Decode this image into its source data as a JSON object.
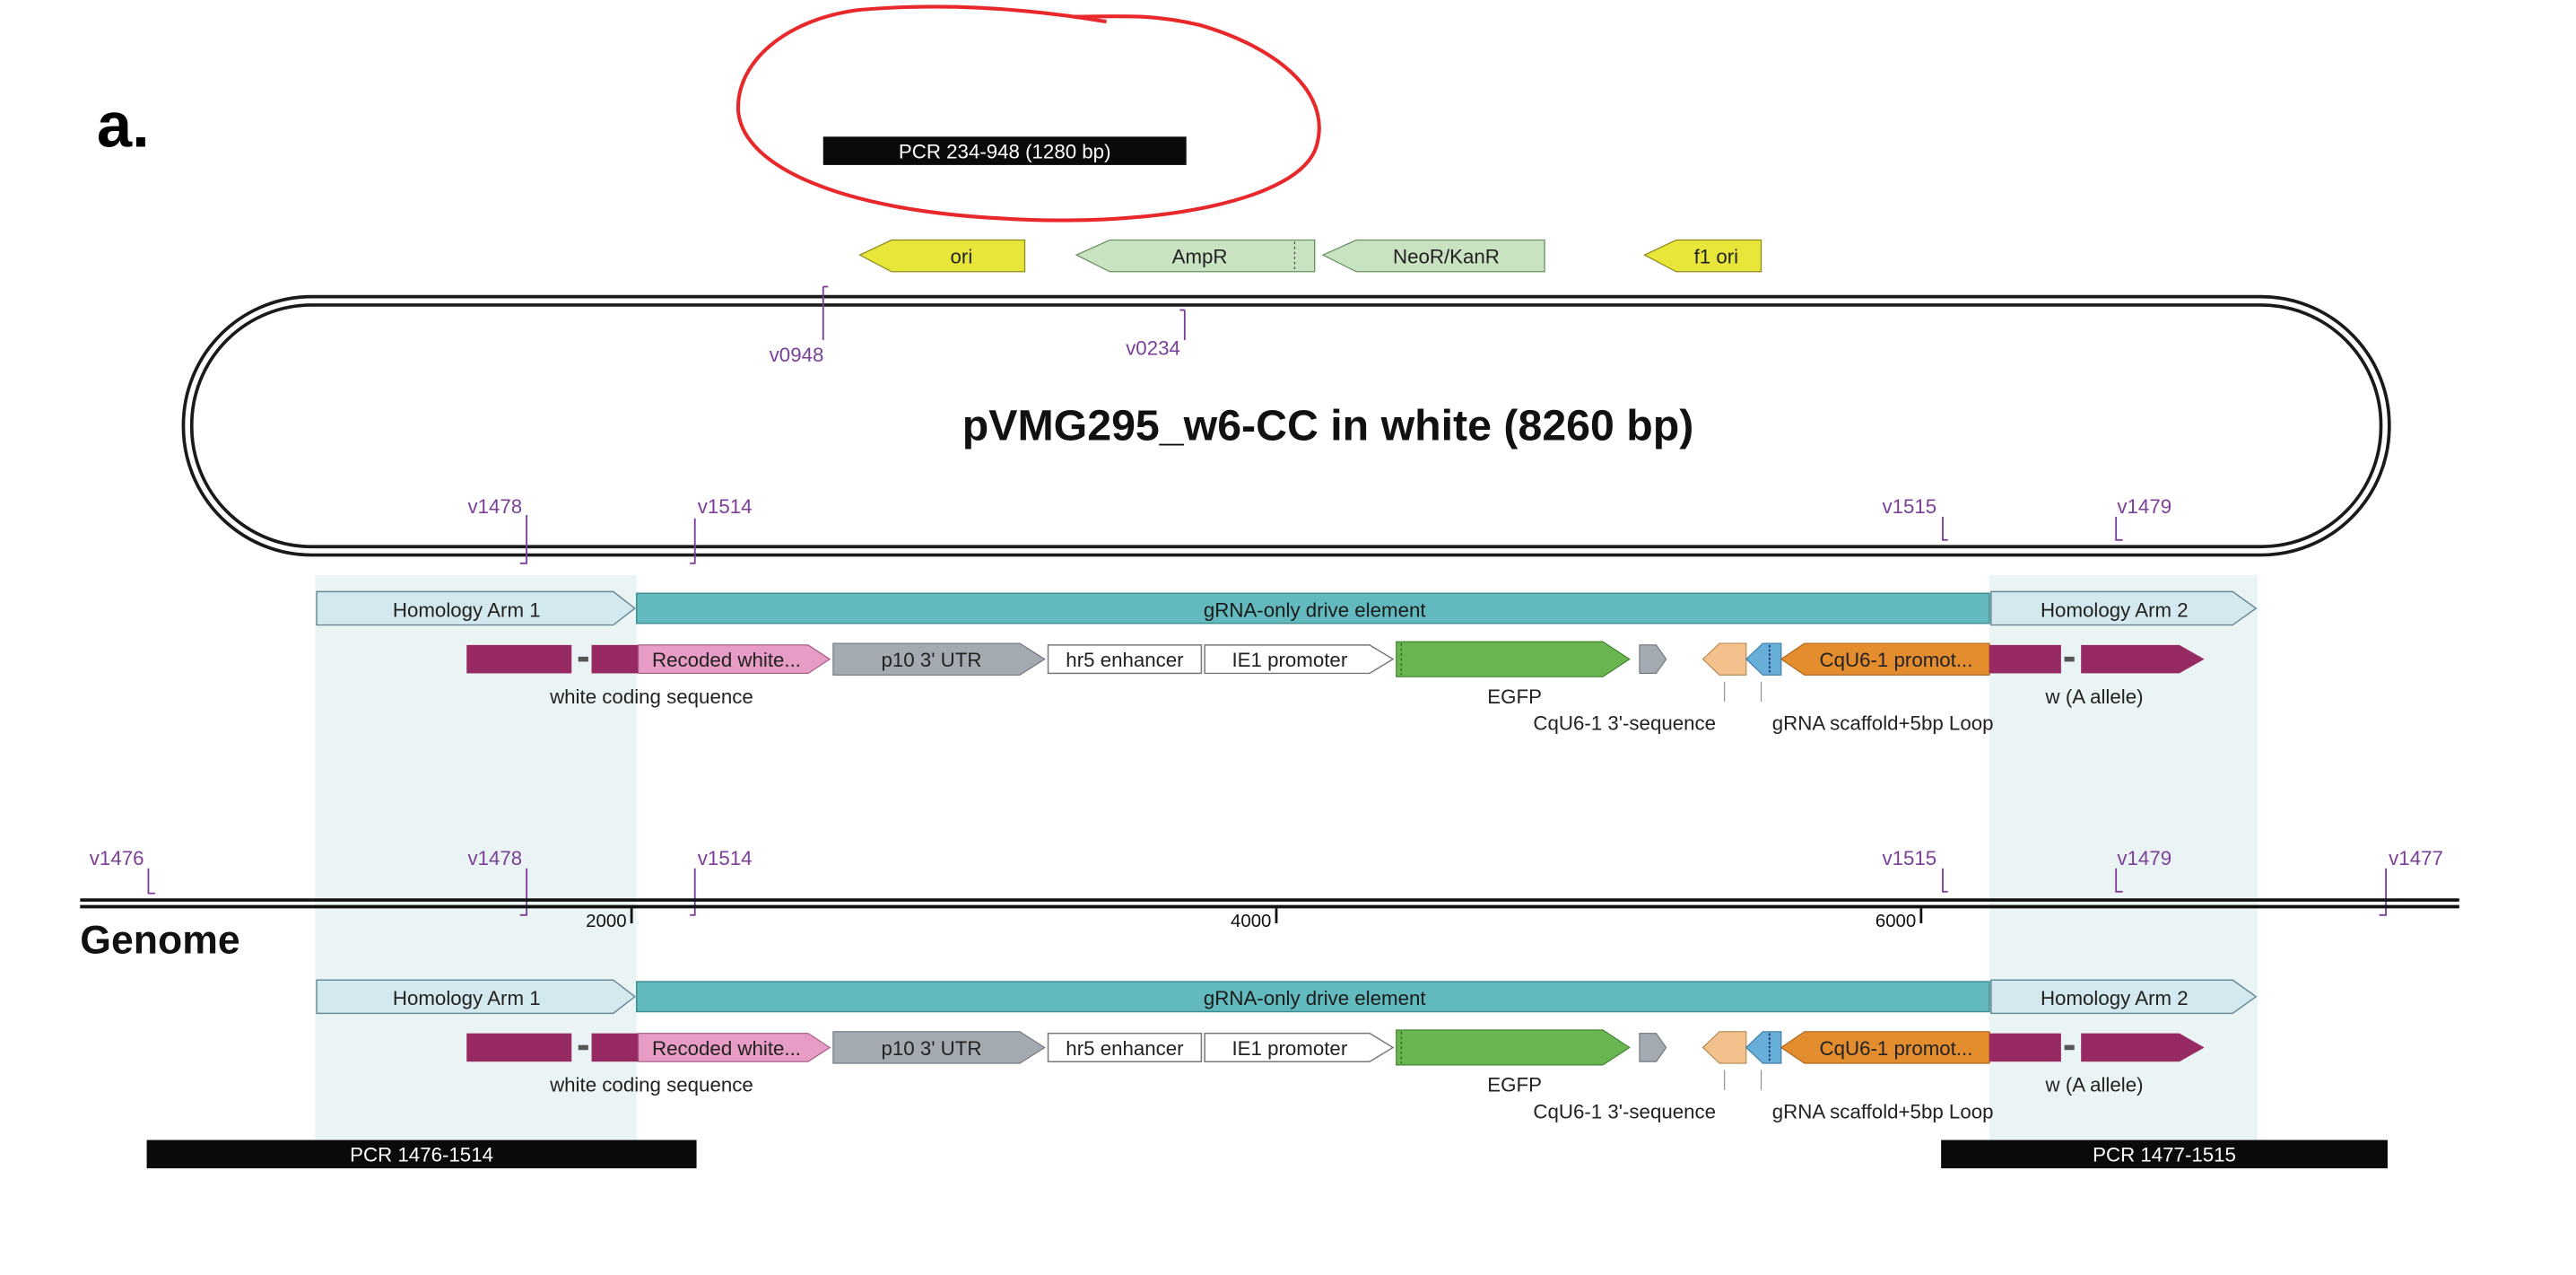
{
  "panel_label": "a.",
  "pcr_top": "PCR 234-948  (1280 bp)",
  "plasmid": {
    "title": "pVMG295_w6-CC in white (8260 bp)",
    "backbone_features": [
      "ori",
      "AmpR",
      "NeoR/KanR",
      "f1 ori"
    ],
    "primers_top": [
      "v0948",
      "v0234"
    ],
    "primers_bottom": [
      "v1478",
      "v1514",
      "v1515",
      "v1479"
    ]
  },
  "construct": {
    "arm1": "Homology Arm 1",
    "drive": "gRNA-only drive element",
    "arm2": "Homology Arm 2",
    "recoded": "Recoded white...",
    "p10": "p10 3' UTR",
    "hr5": "hr5 enhancer",
    "ie1": "IE1 promoter",
    "egfp": "EGFP",
    "cqu6": "CqU6-1 promot...",
    "white_cds": "white coding sequence",
    "cqu6_3": "CqU6-1 3'-sequence",
    "scaffold": "gRNA scaffold+5bp Loop",
    "w_allele": "w (A allele)"
  },
  "genome": {
    "label": "Genome",
    "primers": [
      "v1476",
      "v1478",
      "v1514",
      "v1515",
      "v1479",
      "v1477"
    ],
    "ticks": [
      "2000",
      "4000",
      "6000"
    ],
    "pcr_left": "PCR 1476-1514",
    "pcr_right": "PCR 1477-1515"
  },
  "colors": {
    "primer": "#7b3f98",
    "annotation": "#e8282a",
    "ori": "#e9e63a",
    "resistance": "#c9e2c1",
    "arm": "#d3e8ef",
    "drive": "#62b9be",
    "highlight": "#eaf4f5",
    "white_exon": "#982a63",
    "recoded": "#e69cc4",
    "utr": "#a4aab2",
    "egfp": "#69b54f",
    "cqu6_3": "#f2c18c",
    "scaffold": "#67aed9",
    "promoter": "#e48d2f"
  }
}
